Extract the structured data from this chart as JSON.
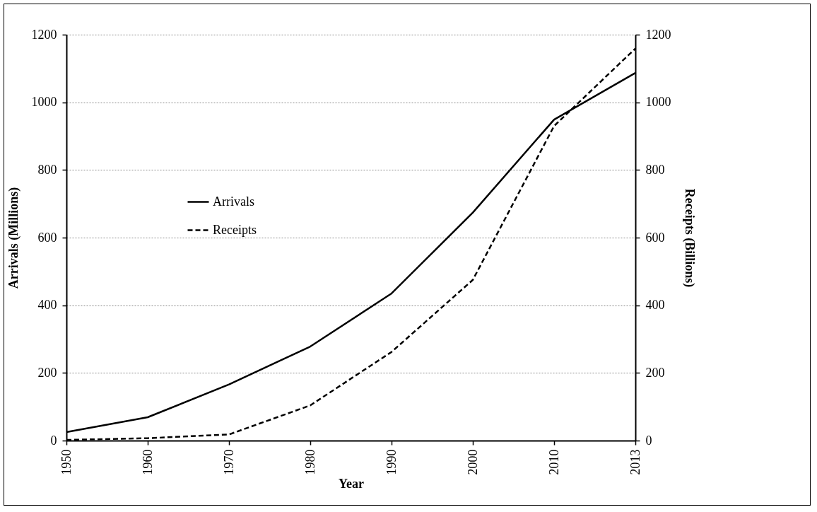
{
  "chart_data": {
    "type": "line",
    "xlabel": "Year",
    "ylabel": "Arrivals (Millions)",
    "y2label": "Receipts (Billions)",
    "categories": [
      "1950",
      "1960",
      "1970",
      "1980",
      "1990",
      "2000",
      "2010",
      "2013"
    ],
    "series": [
      {
        "name": "Arrivals",
        "color": "#000000",
        "line_style": "solid",
        "values": [
          25,
          69,
          166,
          278,
          435,
          674,
          949,
          1087
        ]
      },
      {
        "name": "Receipts",
        "color": "#000000",
        "line_style": "dashed",
        "axis": "y2",
        "values": [
          2,
          7,
          18,
          104,
          262,
          475,
          930,
          1159
        ]
      }
    ],
    "ylim": [
      0,
      1200
    ],
    "yticks": [
      0,
      200,
      400,
      600,
      800,
      1000,
      1200
    ],
    "y2lim": [
      0,
      1200
    ],
    "y2ticks": [
      0,
      200,
      400,
      600,
      800,
      1000,
      1200
    ],
    "grid": "y",
    "legend": "left"
  }
}
